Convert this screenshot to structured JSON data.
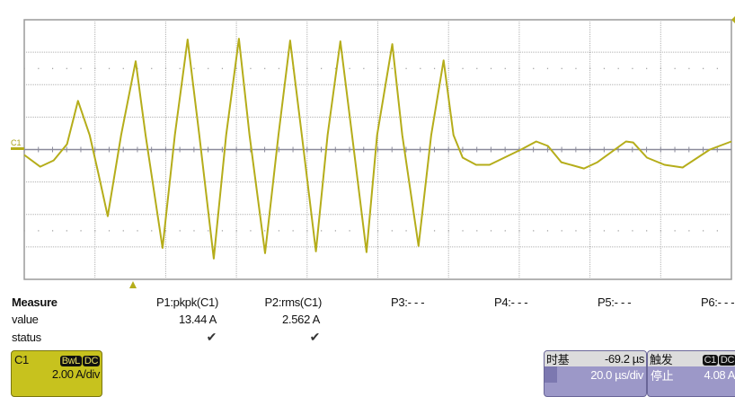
{
  "chart_data": {
    "type": "line",
    "title": "",
    "xlabel": "",
    "ylabel": "",
    "x_unit": "µs (relative to trigger)",
    "y_unit": "A",
    "xlim": [
      -30.7,
      169.3
    ],
    "ylim": [
      -8,
      8
    ],
    "grid": true,
    "grid_divisions": {
      "x": 10,
      "y": 8
    },
    "series": [
      {
        "channel": "C1",
        "color": "#b5ad1a",
        "x": [
          -30.7,
          -26.2,
          -22.4,
          -18.6,
          -15.5,
          -12.2,
          -9.7,
          -7.1,
          -3.3,
          0.8,
          3.6,
          8.4,
          11.9,
          15.5,
          18.8,
          22.9,
          26.4,
          30.0,
          33.0,
          37.4,
          41.2,
          44.5,
          47.8,
          51.8,
          55.1,
          58.7,
          62.0,
          66.1,
          69.1,
          73.4,
          76.2,
          80.8,
          84.4,
          87.9,
          90.7,
          93.3,
          97.1,
          100.9,
          109.8,
          114.1,
          117.4,
          121.2,
          127.6,
          131.4,
          139.5,
          141.5,
          145.4,
          150.4,
          155.5,
          163.2,
          169.3
        ],
        "y": [
          -0.33,
          -1.06,
          -0.67,
          0.33,
          3.0,
          0.89,
          -1.5,
          -4.11,
          0.89,
          5.44,
          0.89,
          -6.06,
          0.89,
          6.78,
          0.89,
          -6.72,
          0.89,
          6.83,
          0.89,
          -6.39,
          0.89,
          6.72,
          0.89,
          -6.28,
          0.89,
          6.67,
          0.89,
          -6.33,
          0.89,
          6.5,
          0.89,
          -5.94,
          0.89,
          5.5,
          0.89,
          -0.5,
          -0.94,
          -0.94,
          0.0,
          0.5,
          0.22,
          -0.78,
          -1.17,
          -0.78,
          0.5,
          0.44,
          -0.5,
          -0.94,
          -1.11,
          0.0,
          0.5
        ]
      }
    ],
    "channel_marker": "C1"
  },
  "measure": {
    "header": "Measure",
    "row_value": "value",
    "row_status": "status",
    "params": [
      {
        "label": "P1:pkpk(C1)",
        "value": "13.44 A",
        "status": "✔"
      },
      {
        "label": "P2:rms(C1)",
        "value": "2.562 A",
        "status": "✔"
      },
      {
        "label": "P3:- - -",
        "value": "",
        "status": ""
      },
      {
        "label": "P4:- - -",
        "value": "",
        "status": ""
      },
      {
        "label": "P5:- - -",
        "value": "",
        "status": ""
      },
      {
        "label": "P6:- - -",
        "value": "",
        "status": ""
      }
    ]
  },
  "channel": {
    "name": "C1",
    "bw": "BwL",
    "coupling": "DC",
    "scale": "2.00 A/div",
    "color": "#c7c21e"
  },
  "timebase": {
    "title": "时基",
    "delay": "-69.2 µs",
    "scale": "20.0 µs/div"
  },
  "trigger": {
    "title": "触发",
    "source": "C1",
    "coupling": "DC",
    "mode": "停止",
    "level": "4.08 A"
  }
}
